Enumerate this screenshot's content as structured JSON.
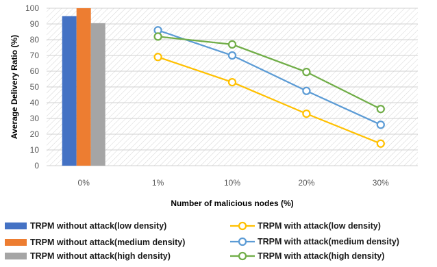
{
  "chart_data": {
    "type": "bar+line",
    "categories": [
      "0%",
      "1%",
      "10%",
      "20%",
      "30%"
    ],
    "xlabel": "Number of malicious nodes (%)",
    "ylabel": "Average Delivery Ratio (%)",
    "ylim": [
      0,
      100
    ],
    "yticks": [
      0,
      10,
      20,
      30,
      40,
      50,
      60,
      70,
      80,
      90,
      100
    ],
    "grid": "hatched plot area",
    "legend_placement": "bottom",
    "bar_series": [
      {
        "name": "TRPM without attack(low density)",
        "color": "#4472C4",
        "category": "0%",
        "value": 95
      },
      {
        "name": "TRPM without attack(medium density)",
        "color": "#ED7D31",
        "category": "0%",
        "value": 100
      },
      {
        "name": "TRPM without attack(high density)",
        "color": "#A5A5A5",
        "category": "0%",
        "value": 90.5
      }
    ],
    "line_series": [
      {
        "name": "TRPM with attack(low density)",
        "color": "#FFC000",
        "categories": [
          "1%",
          "10%",
          "20%",
          "30%"
        ],
        "values": [
          69,
          53,
          33,
          14
        ]
      },
      {
        "name": "TRPM with attack(medium density)",
        "color": "#5B9BD5",
        "categories": [
          "1%",
          "10%",
          "20%",
          "30%"
        ],
        "values": [
          86,
          70,
          47.5,
          26
        ]
      },
      {
        "name": "TRPM with attack(high density)",
        "color": "#70AD47",
        "categories": [
          "1%",
          "10%",
          "20%",
          "30%"
        ],
        "values": [
          82,
          77,
          59.5,
          36
        ]
      }
    ]
  }
}
